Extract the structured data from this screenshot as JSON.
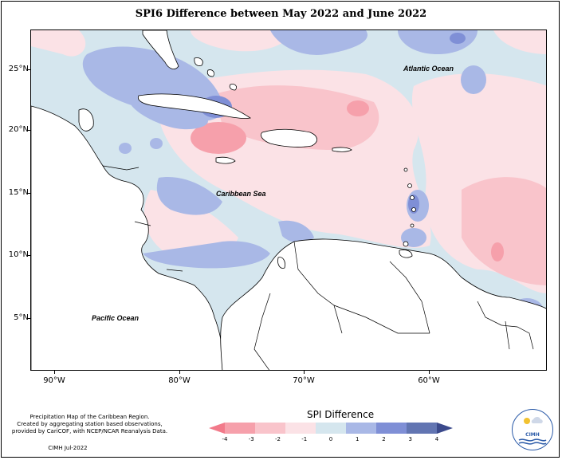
{
  "title": "SPI6 Difference between May 2022 and June 2022",
  "lat_labels": [
    "25°N",
    "20°N",
    "15°N",
    "10°N",
    "5°N"
  ],
  "lon_labels": [
    "90°W",
    "80°W",
    "70°W",
    "60°W"
  ],
  "ocean_labels": {
    "atlantic": "Atlantic Ocean",
    "caribbean": "Caribbean Sea",
    "pacific": "Pacific Ocean"
  },
  "footer": {
    "line1": "Precipitation Map of the Caribbean Region.",
    "line2": "Created by aggregating station based observations,",
    "line3": "provided by CariCOF, with NCEP/NCAR Reanalysis Data.",
    "credit": "CIMH Jul-2022"
  },
  "legend": {
    "title": "SPI Difference",
    "labels": [
      "-4",
      "-3",
      "-2",
      "-1",
      "0",
      "1",
      "2",
      "3",
      "4"
    ],
    "colors": [
      "#f27a8a",
      "#f6a0ab",
      "#f9c4cb",
      "#fbe2e6",
      "#d5e6ee",
      "#a9b8e6",
      "#7f8fd6",
      "#6275b2",
      "#3b4a8c"
    ]
  },
  "logo": {
    "text": "CIMH",
    "icon": "cimh-logo-icon"
  }
}
